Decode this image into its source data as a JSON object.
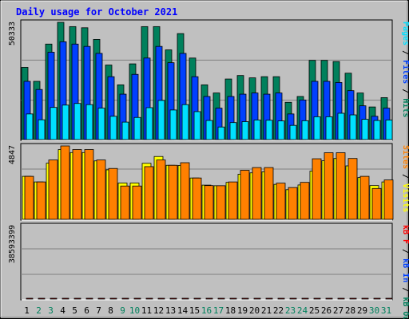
{
  "title": "Daily usage for October 2021",
  "colors": {
    "background": "#c0c0c0",
    "hits": "#00805c",
    "files": "#0040ff",
    "pages": "#00e0ff",
    "visits": "#ffff00",
    "sites": "#ff8000",
    "kbytes": "#ff0000",
    "title": "#0000ff",
    "weekday": "#000000",
    "weekend": "#00805c"
  },
  "chart_data": {
    "type": "bar",
    "categories": [
      "1",
      "2",
      "3",
      "4",
      "5",
      "6",
      "7",
      "8",
      "9",
      "10",
      "11",
      "12",
      "13",
      "14",
      "15",
      "16",
      "17",
      "18",
      "19",
      "20",
      "21",
      "22",
      "23",
      "24",
      "25",
      "26",
      "27",
      "28",
      "29",
      "30",
      "31"
    ],
    "weekend_days": [
      "2",
      "3",
      "9",
      "10",
      "16",
      "17",
      "23",
      "24",
      "30",
      "31"
    ],
    "panels": [
      {
        "id": "hits-files-pages",
        "max_label": "50333",
        "ymax": 50333,
        "series": [
          {
            "name": "Hits",
            "values": [
              31000,
              25000,
              41000,
              50333,
              48500,
              48000,
              43000,
              32000,
              23500,
              32500,
              48500,
              48500,
              38500,
              45500,
              35000,
              23500,
              20000,
              26000,
              27500,
              26500,
              27000,
              27000,
              16000,
              18500,
              34000,
              34000,
              33500,
              28500,
              20000,
              14000,
              18000
            ]
          },
          {
            "name": "Files",
            "values": [
              25000,
              21500,
              37500,
              42000,
              41000,
              40000,
              37000,
              27000,
              19500,
              28000,
              35000,
              40000,
              33000,
              37000,
              27000,
              18500,
              13500,
              18500,
              19500,
              20000,
              19500,
              20000,
              11000,
              17000,
              25000,
              25000,
              24500,
              21000,
              14500,
              10000,
              13500
            ]
          },
          {
            "name": "Pages",
            "values": [
              11000,
              8500,
              13800,
              14800,
              15500,
              15000,
              13500,
              10000,
              7500,
              9500,
              13700,
              16800,
              12700,
              15000,
              12000,
              8200,
              5400,
              7300,
              7700,
              8400,
              8300,
              8000,
              6100,
              8100,
              9800,
              9800,
              11300,
              10600,
              8700,
              8200,
              8400
            ]
          }
        ]
      },
      {
        "id": "visits-sites",
        "max_label": "4847",
        "ymax": 4847,
        "series": [
          {
            "name": "Visits",
            "values": [
              2840,
              2470,
              3710,
              4610,
              4410,
              4410,
              3860,
              3270,
              2400,
              2400,
              3700,
              4150,
              3570,
              3560,
              2730,
              2260,
              2220,
              2440,
              2980,
              3070,
              3140,
              2310,
              1960,
              2270,
              3190,
              3870,
              4020,
              3530,
              2760,
              2230,
              2470
            ]
          },
          {
            "name": "Sites",
            "values": [
              2840,
              2470,
              3920,
              4847,
              4610,
              4610,
              3920,
              3360,
              2200,
              2200,
              3480,
              3920,
              3570,
              3740,
              2730,
              2230,
              2220,
              2470,
              3240,
              3420,
              3420,
              2390,
              2100,
              2440,
              4000,
              4400,
              4400,
              4020,
              2840,
              2040,
              2600
            ]
          }
        ]
      },
      {
        "id": "kbytes",
        "max_label": "38593399",
        "ymax": 38593399,
        "series": [
          {
            "name": "KB In",
            "values": [
              0,
              0,
              0,
              0,
              0,
              0,
              0,
              0,
              0,
              0,
              0,
              0,
              0,
              0,
              0,
              0,
              0,
              0,
              0,
              0,
              0,
              0,
              0,
              0,
              0,
              0,
              0,
              0,
              0,
              0,
              0
            ]
          },
          {
            "name": "KB Out",
            "values": [
              0,
              0,
              0,
              0,
              0,
              0,
              0,
              0,
              0,
              0,
              0,
              0,
              0,
              0,
              0,
              0,
              0,
              0,
              0,
              0,
              0,
              0,
              0,
              0,
              0,
              0,
              0,
              0,
              0,
              0,
              0
            ]
          },
          {
            "name": "KB F",
            "values": [
              10900,
              10400,
              16900,
              19600,
              17400,
              19600,
              15300,
              11500,
              8450,
              10800,
              19600,
              18500,
              15300,
              21700,
              10800,
              10400,
              10400,
              13200,
              17400,
              15300,
              21700,
              20600,
              8450,
              15300,
              28200,
              38593,
              13200,
              15300,
              7400,
              8450,
              9300
            ]
          }
        ]
      }
    ],
    "right_labels": [
      [
        {
          "text": "Pages",
          "color_key": "pages"
        },
        {
          "text": " / ",
          "color_key": "weekday"
        },
        {
          "text": "Files",
          "color_key": "files"
        },
        {
          "text": " / ",
          "color_key": "weekday"
        },
        {
          "text": "Hits",
          "color_key": "hits"
        }
      ],
      [
        {
          "text": "Sites",
          "color_key": "sites"
        },
        {
          "text": " / ",
          "color_key": "weekday"
        },
        {
          "text": "Visits",
          "color_key": "visits"
        }
      ],
      [
        {
          "text": "kB F",
          "color_key": "kbytes"
        },
        {
          "text": " / ",
          "color_key": "weekday"
        },
        {
          "text": "kB In",
          "color_key": "files"
        },
        {
          "text": " / ",
          "color_key": "weekday"
        },
        {
          "text": "kB Out",
          "color_key": "hits"
        }
      ]
    ]
  }
}
